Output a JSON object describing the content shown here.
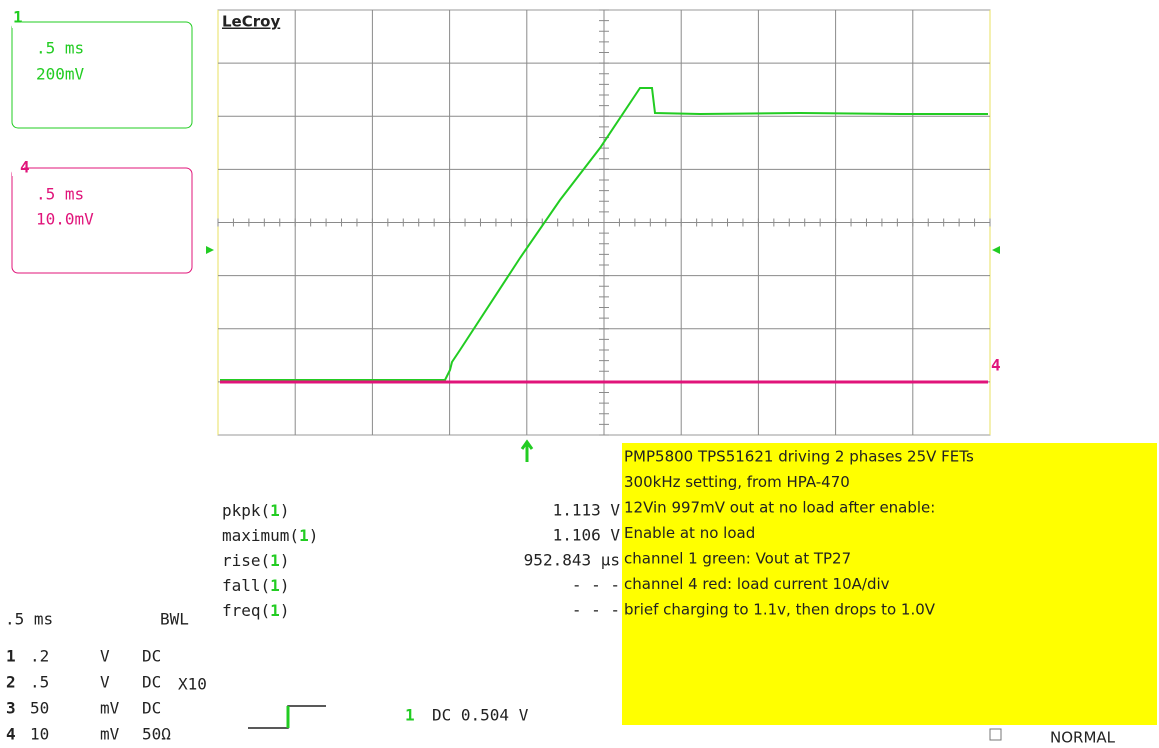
{
  "scope": {
    "brand": "LeCroy",
    "channel_boxes": [
      {
        "badge": "1",
        "timebase": ".5 ms",
        "scale": "200mV"
      },
      {
        "badge": "4",
        "timebase": ".5 ms",
        "scale": "10.0mV"
      }
    ],
    "trace_marker": "4",
    "measurements": [
      {
        "name": "pkpk(",
        "channel": "1",
        "close": ")",
        "value": "1.113 V"
      },
      {
        "name": "maximum(",
        "channel": "1",
        "close": ")",
        "value": "1.106 V"
      },
      {
        "name": "rise(",
        "channel": "1",
        "close": ")",
        "value": "952.843 µs"
      },
      {
        "name": "fall(",
        "channel": "1",
        "close": ")",
        "value": "- - -"
      },
      {
        "name": "freq(",
        "channel": "1",
        "close": ")",
        "value": "- - -"
      }
    ],
    "note": [
      "PMP5800 TPS51621 driving 2 phases 25V FETs",
      "300kHz setting, from HPA-470",
      "12Vin 997mV out at no load after enable:",
      "Enable at no load",
      "channel 1 green: Vout at TP27",
      "channel 4 red: load current 10A/div",
      "brief charging to 1.1v, then drops to 1.0V"
    ],
    "timebase": ".5 ms",
    "bandwidth": "BWL",
    "channels": [
      [
        "1",
        ".2",
        "V",
        "DC"
      ],
      [
        "2",
        ".5",
        "V",
        "DC",
        "X10"
      ],
      [
        "3",
        "50",
        "mV",
        "DC"
      ],
      [
        "4",
        "10",
        "mV",
        "50Ω"
      ]
    ],
    "trigger": {
      "channel": "1",
      "setting": "DC 0.504 V"
    },
    "mode": "NORMAL"
  }
}
